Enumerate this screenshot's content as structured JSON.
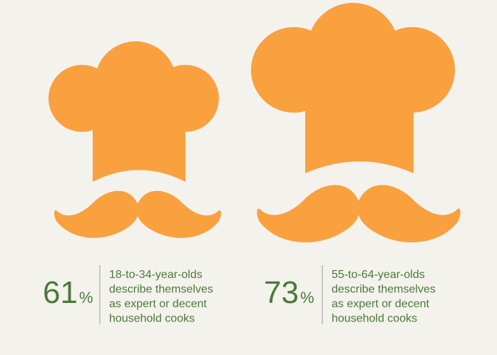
{
  "items": [
    {
      "number": "61",
      "unit": "%",
      "description_lines": [
        "18-to-34-year-olds",
        "describe themselves",
        "as expert or decent",
        "household cooks"
      ]
    },
    {
      "number": "73",
      "unit": "%",
      "description_lines": [
        "55-to-64-year-olds",
        "describe themselves",
        "as expert or decent",
        "household cooks"
      ]
    }
  ]
}
